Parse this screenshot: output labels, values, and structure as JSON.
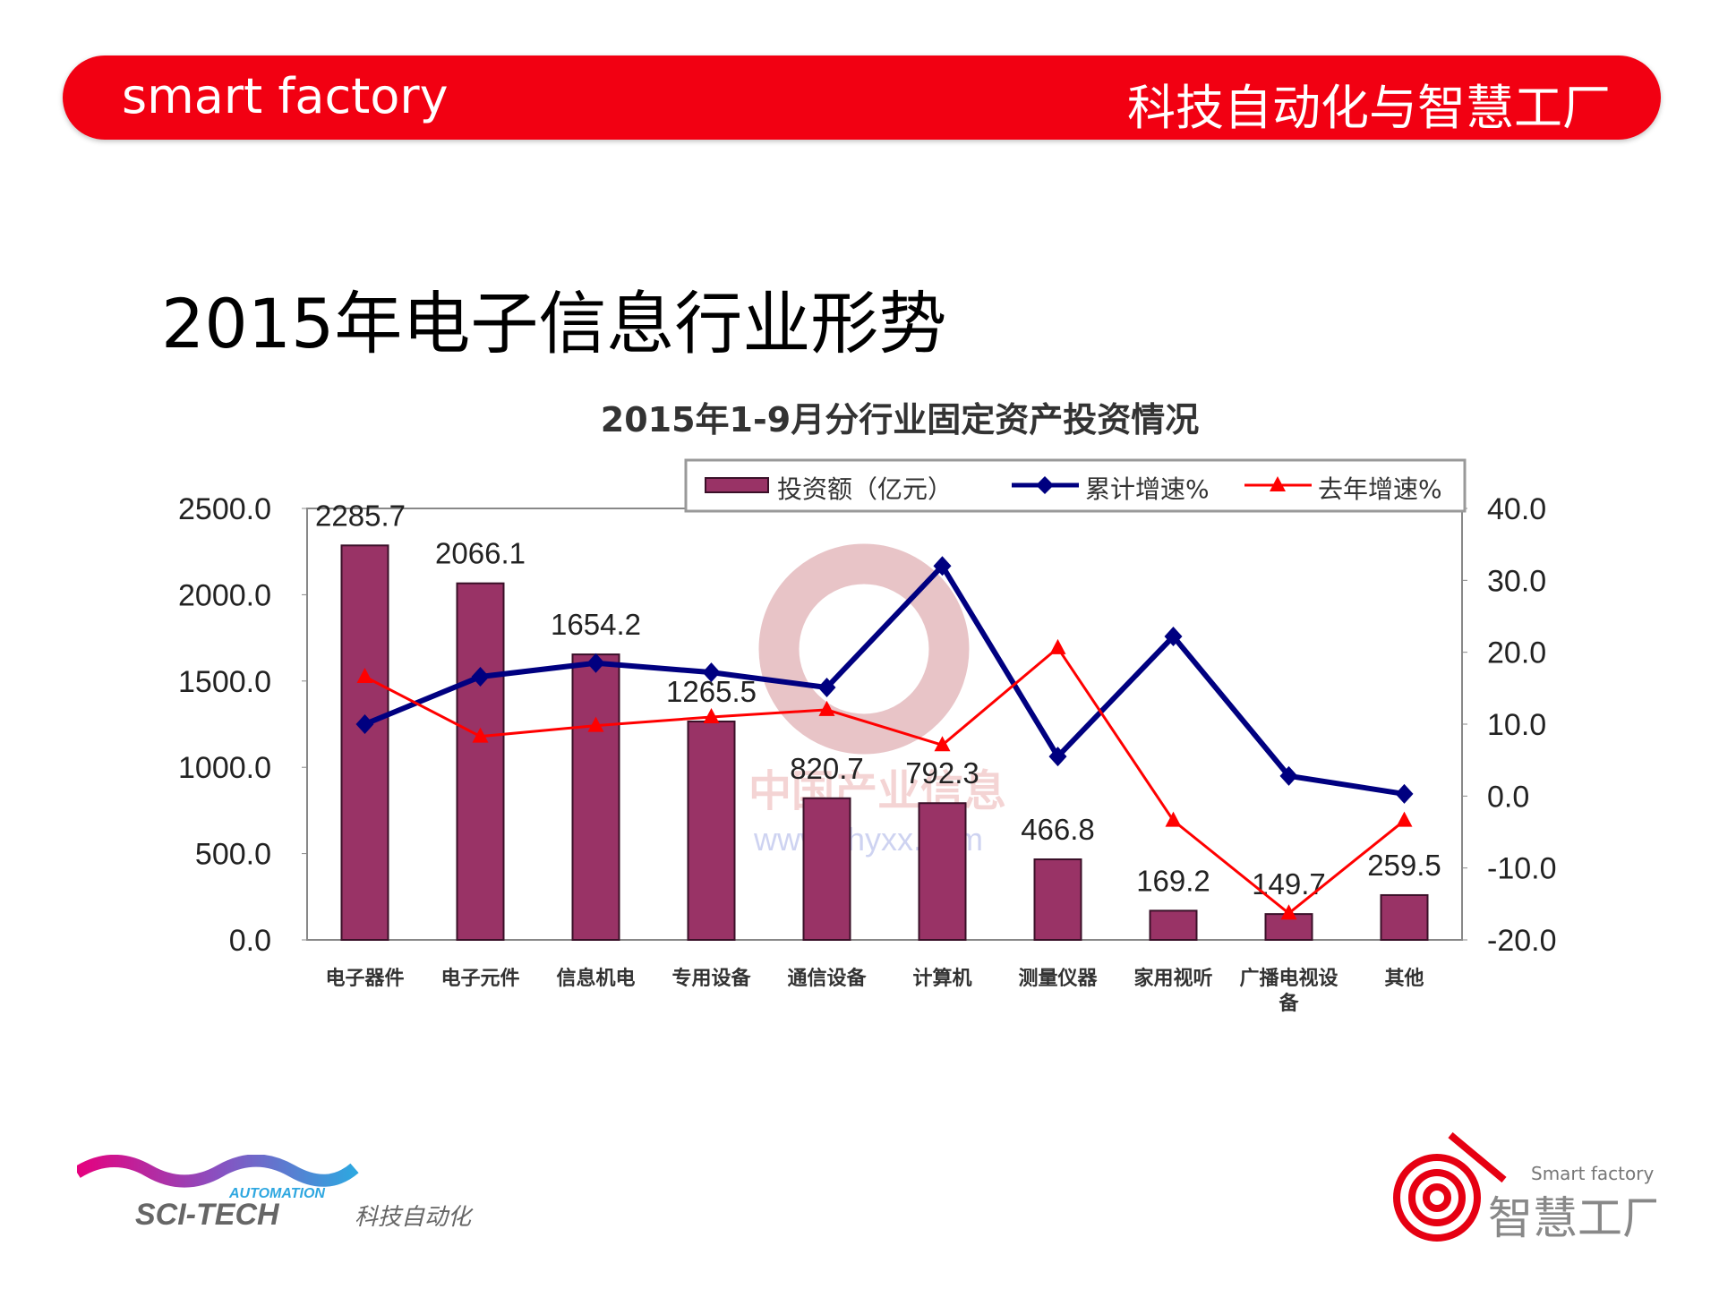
{
  "header": {
    "left_text": "smart factory",
    "right_text": "科技自动化与智慧工厂",
    "color": "#f20012"
  },
  "slide_title": "2015年电子信息行业形势",
  "chart_data": {
    "type": "bar+line",
    "title": "2015年1-9月分行业固定资产投资情况",
    "categories": [
      "电子器件",
      "电子元件",
      "信息机电",
      "专用设备",
      "通信设备",
      "计算机",
      "测量仪器",
      "家用视听",
      "广播电视设备",
      "其他"
    ],
    "left_axis": {
      "range": [
        0,
        2500
      ],
      "ticks": [
        "0.0",
        "500.0",
        "1000.0",
        "1500.0",
        "2000.0",
        "2500.0"
      ]
    },
    "right_axis": {
      "range": [
        -20,
        40
      ],
      "ticks": [
        "-20.0",
        "-10.0",
        "0.0",
        "10.0",
        "20.0",
        "30.0",
        "40.0"
      ]
    },
    "legend_placement": "top-right",
    "series": [
      {
        "name": "投资额（亿元）",
        "type": "bar",
        "axis": "left",
        "color": "#993366",
        "values": [
          2285.7,
          2066.1,
          1654.2,
          1265.5,
          820.7,
          792.3,
          466.8,
          169.2,
          149.7,
          259.5
        ],
        "labels": [
          "2285.7",
          "2066.1",
          "1654.2",
          "1265.5",
          "820.7",
          "792.3",
          "466.8",
          "169.2",
          "149.7",
          "259.5"
        ]
      },
      {
        "name": "累计增速%",
        "type": "line",
        "axis": "right",
        "marker": "diamond",
        "color": "#000080",
        "values": [
          10,
          16.6,
          18.5,
          17.2,
          15.1,
          32,
          5.5,
          22.2,
          2.8,
          0.3
        ]
      },
      {
        "name": "去年增速%",
        "type": "line",
        "axis": "right",
        "marker": "triangle",
        "color": "#ff0000",
        "values": [
          16.6,
          8.3,
          9.8,
          11,
          12,
          7.1,
          20.6,
          -3.4,
          -16.3,
          -3.4
        ]
      }
    ],
    "watermark": "中国产业信息 www.chyxx.com"
  },
  "logos": {
    "left": "SCI-TECH AUTOMATION 科技自动化",
    "right": "Smart factory 智慧工厂"
  }
}
